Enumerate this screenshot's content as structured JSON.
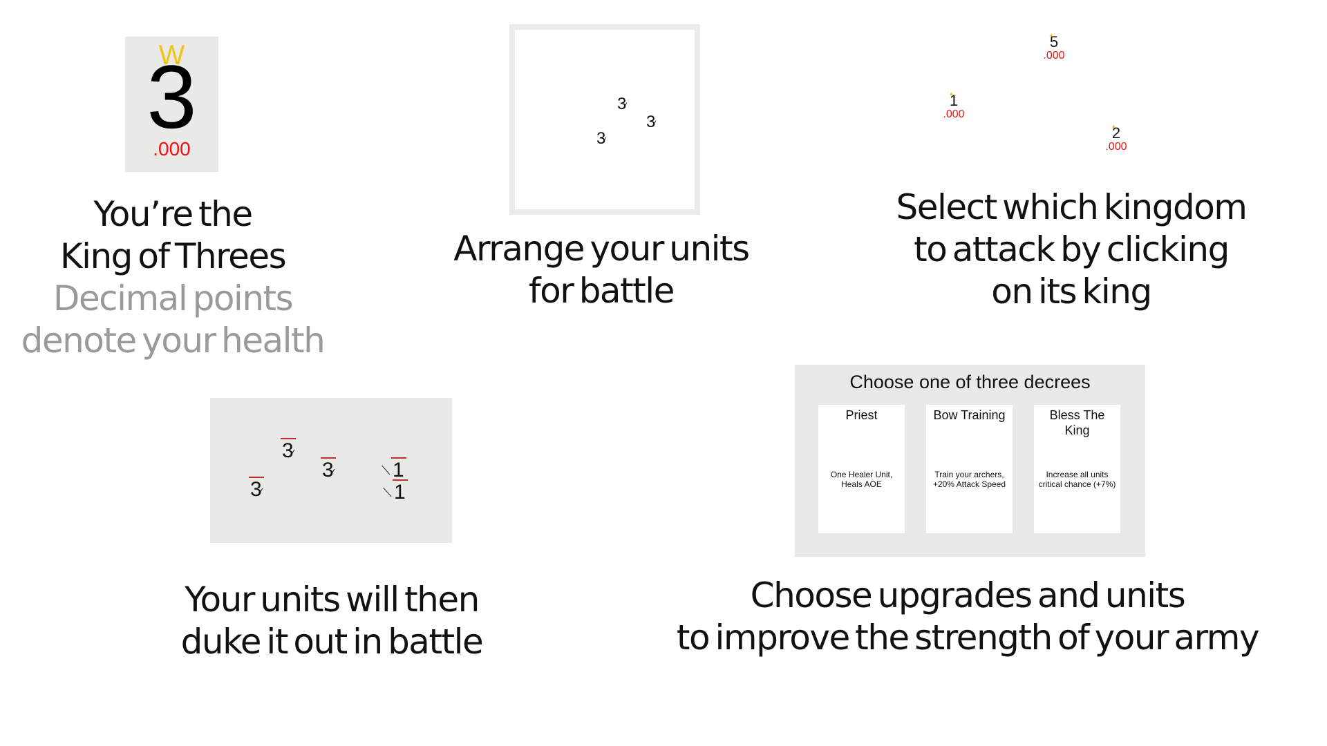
{
  "panel_king": {
    "crown_glyph": "W",
    "number": "3",
    "health": ".000",
    "caption_lines": [
      "You’re the",
      "King of Threes"
    ],
    "caption_muted_lines": [
      "Decimal points",
      "denote your health"
    ]
  },
  "panel_arrange": {
    "units": [
      {
        "number": "3",
        "bow": "⁄"
      },
      {
        "number": "3",
        "bow": "⁄"
      },
      {
        "number": "3",
        "bow": "⁄"
      }
    ],
    "caption_lines": [
      "Arrange your units",
      "for battle"
    ]
  },
  "panel_select": {
    "kingdoms": [
      {
        "number": "5",
        "health": ".000"
      },
      {
        "number": "1",
        "health": ".000"
      },
      {
        "number": "2",
        "health": ".000"
      }
    ],
    "caption_lines": [
      "Select which kingdom",
      "to attack by clicking",
      "on its king"
    ]
  },
  "panel_battle": {
    "units": [
      {
        "number": "3",
        "bow": "⁄"
      },
      {
        "number": "3",
        "bow": "⁄"
      },
      {
        "number": "3",
        "bow": "⁄"
      },
      {
        "number": "1",
        "sword": "⟍"
      },
      {
        "number": "1",
        "sword": "⟍"
      }
    ],
    "hp_color": "#c0302b",
    "caption_lines": [
      "Your units will then",
      "duke it out in battle"
    ]
  },
  "panel_decrees": {
    "title": "Choose one of three decrees",
    "cards": [
      {
        "name": "Priest",
        "desc": "One Healer Unit, Heals AOE"
      },
      {
        "name": "Bow Training",
        "desc": "Train your archers, +20% Attack Speed"
      },
      {
        "name": "Bless The King",
        "desc": "Increase all units critical chance (+7%)"
      }
    ],
    "caption_lines": [
      "Choose upgrades and units",
      "to improve the strength of your army"
    ]
  },
  "colors": {
    "health": "#e11111",
    "crown": "#f0c419",
    "panel_bg": "#e9e9e7",
    "muted_text": "#9a9a9a"
  }
}
